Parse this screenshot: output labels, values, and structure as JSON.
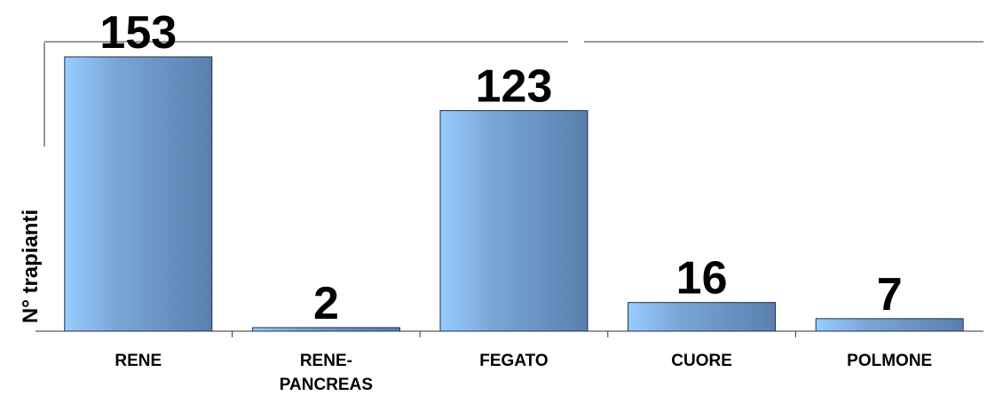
{
  "chart_data": {
    "type": "bar",
    "title": "",
    "xlabel": "",
    "ylabel": "N° trapianti",
    "ylim": [
      0,
      160
    ],
    "grid": false,
    "legend": "none",
    "categories": [
      [
        "RENE"
      ],
      [
        "RENE-",
        "PANCREAS"
      ],
      [
        "FEGATO"
      ],
      [
        "CUORE"
      ],
      [
        "POLMONE"
      ]
    ],
    "values": [
      153,
      2,
      123,
      16,
      7
    ],
    "data_labels": [
      "153",
      "2",
      "123",
      "16",
      "7"
    ],
    "colors": {
      "bar_light": "#99ccff",
      "bar_mid": "#7aa6d6",
      "bar_dark": "#5a7fae",
      "bar_edge": "#1f2f4a",
      "axis": "#333333",
      "text": "#000000"
    }
  }
}
